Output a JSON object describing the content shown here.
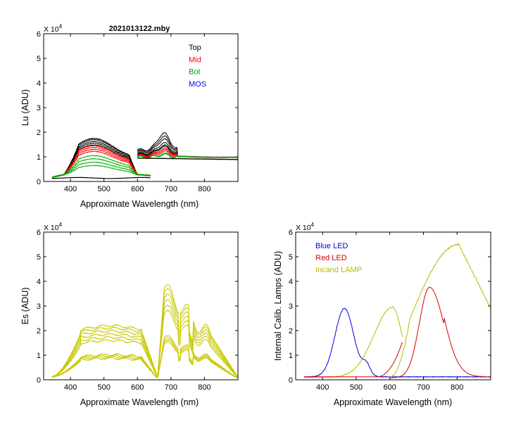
{
  "colors": {
    "top": "#000000",
    "mid": "#ff0000",
    "bot": "#00aa00",
    "mos": "#0000ff",
    "es": "#c8c800",
    "blue_led": "#0000dd",
    "red_led": "#dd0000",
    "incand_lamp": "#bbbb00"
  },
  "chart_data": [
    {
      "id": "lu",
      "type": "line",
      "title": "2021013122.mby",
      "xlabel": "Approximate Wavelength (nm)",
      "ylabel": "Lu (ADU)",
      "multiplier": "X 10",
      "multiplier_exp": "4",
      "xlim": [
        320,
        900
      ],
      "ylim": [
        0,
        6
      ],
      "xticks": [
        "400",
        "500",
        "600",
        "700",
        "800"
      ],
      "xtick_values": [
        400,
        500,
        600,
        700,
        800
      ],
      "yticks": [
        "0",
        "1",
        "2",
        "3",
        "4",
        "5",
        "6"
      ],
      "legend": [
        {
          "label": "Top",
          "color_key": "top"
        },
        {
          "label": "Mid",
          "color_key": "mid"
        },
        {
          "label": "Bot",
          "color_key": "bot"
        },
        {
          "label": "MOS",
          "color_key": "mos"
        }
      ],
      "series": [
        {
          "name": "Top",
          "color_key": "top",
          "segment": "vis",
          "peaks": [
            1.75,
            1.7,
            1.62,
            1.55,
            1.48
          ]
        },
        {
          "name": "Mid",
          "color_key": "mid",
          "segment": "vis",
          "peaks": [
            1.45,
            1.38,
            1.3,
            1.22
          ]
        },
        {
          "name": "Bot",
          "color_key": "bot",
          "segment": "vis",
          "peaks": [
            1.05,
            0.92,
            0.78,
            0.65
          ]
        },
        {
          "name": "Top",
          "color_key": "top",
          "segment": "nir",
          "peaks": [
            1.95,
            1.82,
            1.7,
            1.55,
            1.45,
            1.4
          ]
        },
        {
          "name": "Mid",
          "color_key": "mid",
          "segment": "nir",
          "peaks": [
            1.32,
            1.26,
            1.2
          ]
        },
        {
          "name": "Bot",
          "color_key": "bot",
          "segment": "nir",
          "peaks": [
            1.12,
            1.08
          ]
        }
      ]
    },
    {
      "id": "es",
      "type": "line",
      "xlabel": "Approximate Wavelength (nm)",
      "ylabel": "Es  (ADU)",
      "multiplier": "X 10",
      "multiplier_exp": "4",
      "xlim": [
        320,
        900
      ],
      "ylim": [
        0,
        6
      ],
      "xticks": [
        "400",
        "500",
        "600",
        "700",
        "800"
      ],
      "xtick_values": [
        400,
        500,
        600,
        700,
        800
      ],
      "yticks": [
        "0",
        "1",
        "2",
        "3",
        "4",
        "5",
        "6"
      ],
      "series": [
        {
          "name": "Es",
          "color_key": "es",
          "scales": [
            2.2,
            2.1,
            1.98,
            1.85,
            1.72,
            1.6,
            1.02,
            0.97,
            0.92,
            0.87
          ]
        }
      ]
    },
    {
      "id": "lamps",
      "type": "line",
      "xlabel": "Approximate Wavelength (nm)",
      "ylabel": "Internal Calib. Lamps (ADU)",
      "multiplier": "X 10",
      "multiplier_exp": "4",
      "xlim": [
        320,
        900
      ],
      "ylim": [
        0,
        6
      ],
      "xticks": [
        "400",
        "500",
        "600",
        "700",
        "800"
      ],
      "xtick_values": [
        400,
        500,
        600,
        700,
        800
      ],
      "yticks": [
        "0",
        "1",
        "2",
        "3",
        "4",
        "5",
        "6"
      ],
      "legend": [
        {
          "label": "Blue LED",
          "color_key": "blue_led"
        },
        {
          "label": "Red LED",
          "color_key": "red_led"
        },
        {
          "label": "Incand LAMP",
          "color_key": "incand_lamp"
        }
      ],
      "series": [
        {
          "name": "Blue LED",
          "color_key": "blue_led",
          "peak_nm": 465,
          "peak": 2.78
        },
        {
          "name": "Red LED",
          "color_key": "red_led",
          "peak_nm": 718,
          "peak": 3.68
        },
        {
          "name": "Incand LAMP",
          "color_key": "incand_lamp",
          "peak_nm": 805,
          "peak": 5.5
        }
      ]
    }
  ]
}
